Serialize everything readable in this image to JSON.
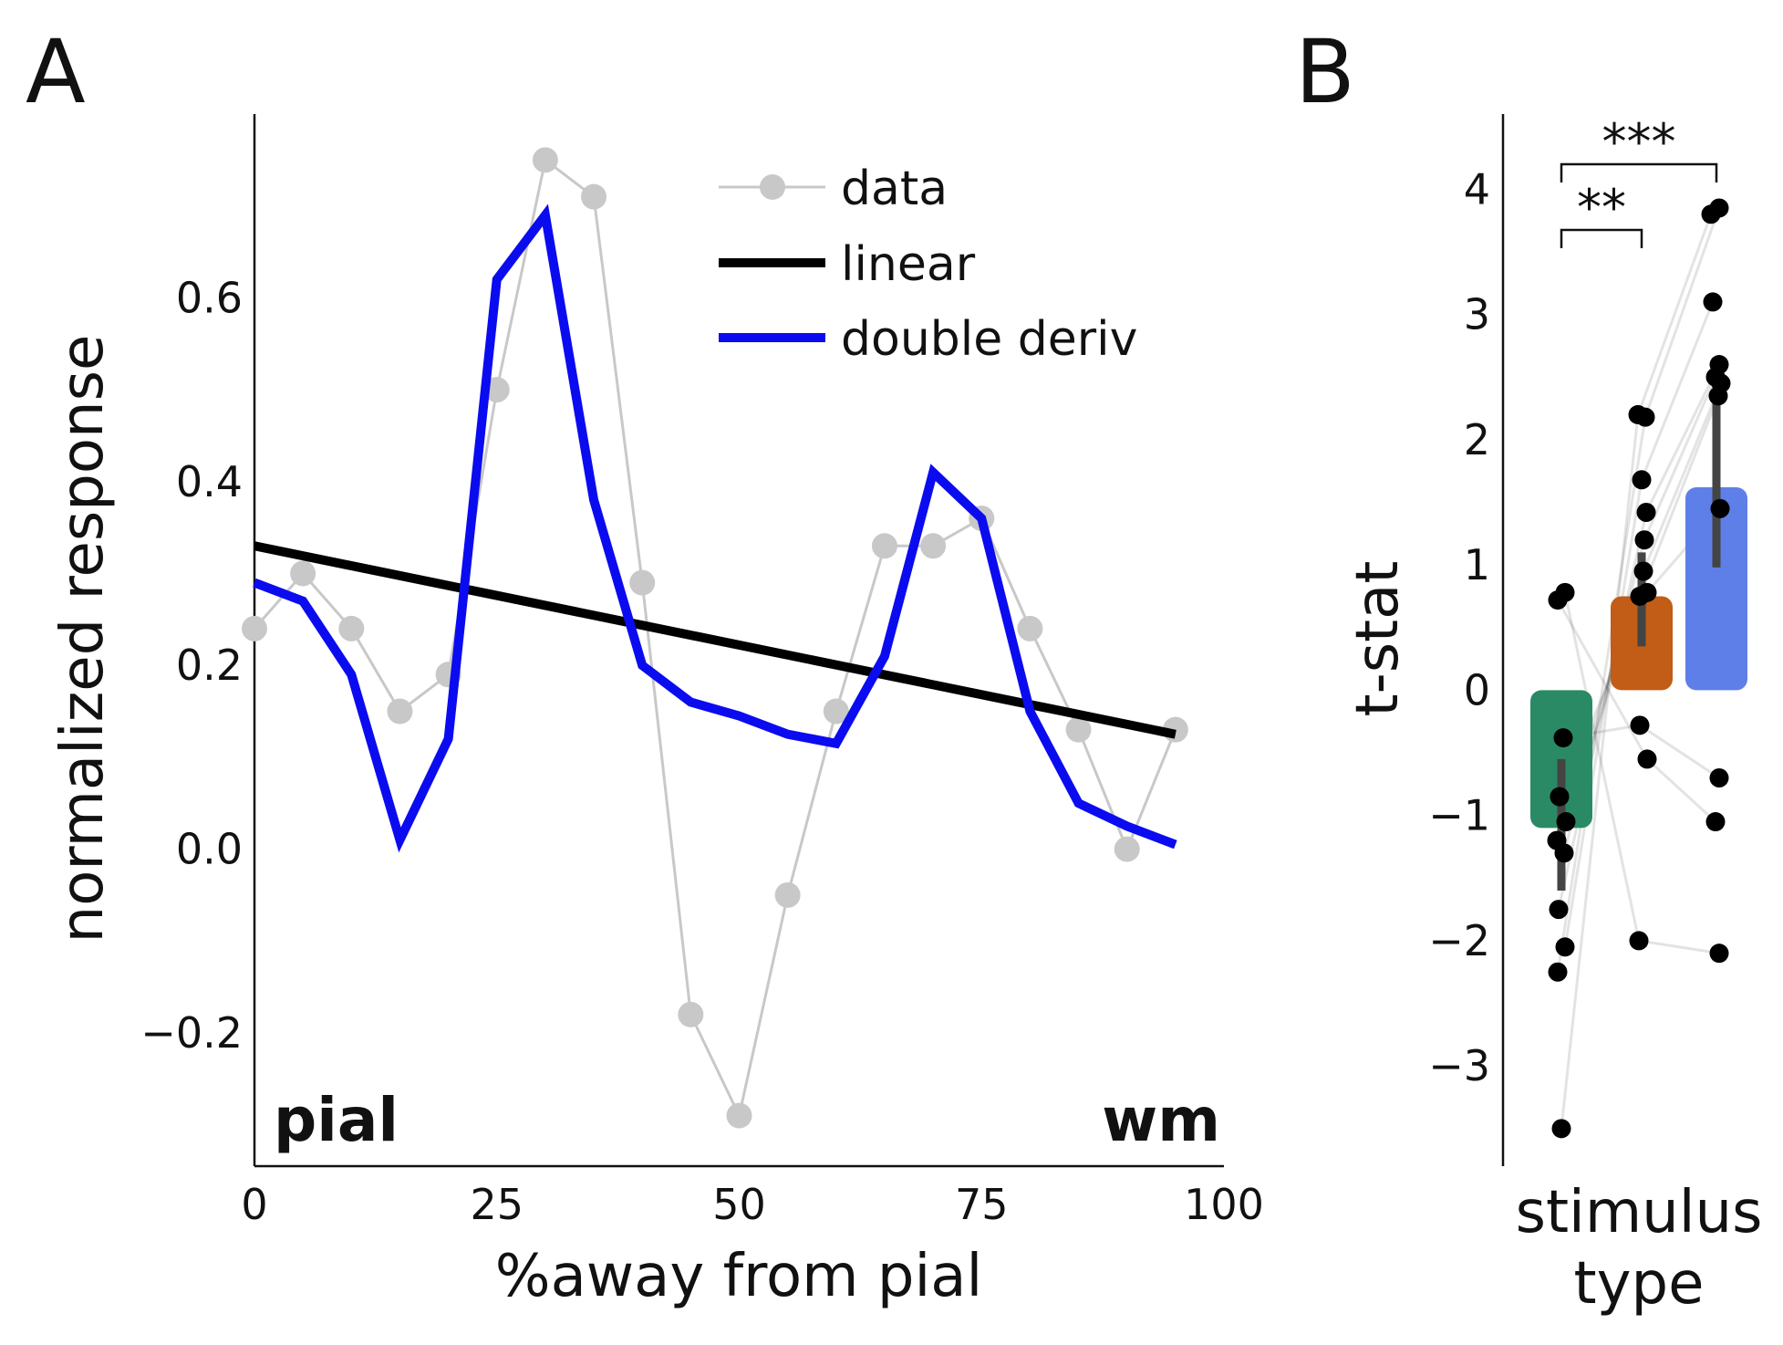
{
  "panels": {
    "a": "A",
    "b": "B"
  },
  "chart_data": [
    {
      "type": "line",
      "xlabel": "%away from pial",
      "ylabel": "normalized response",
      "xlim": [
        0,
        100
      ],
      "ylim": [
        -0.345,
        0.8
      ],
      "xticks": [
        0,
        25,
        50,
        75,
        100
      ],
      "yticks": [
        -0.2,
        0.0,
        0.2,
        0.4,
        0.6
      ],
      "xtick_labels": [
        "0",
        "25",
        "50",
        "75",
        "100"
      ],
      "ytick_labels": [
        "−0.2",
        "0.0",
        "0.2",
        "0.4",
        "0.6"
      ],
      "annotations": {
        "left": "pial",
        "right": "wm"
      },
      "legend_position": "top-right",
      "series": [
        {
          "name": "data",
          "color": "#c8c8c8",
          "marker": "circle",
          "x": [
            0,
            5,
            10,
            15,
            20,
            25,
            30,
            35,
            40,
            45,
            50,
            55,
            60,
            65,
            70,
            75,
            80,
            85,
            90,
            95
          ],
          "y": [
            0.24,
            0.3,
            0.24,
            0.15,
            0.19,
            0.5,
            0.75,
            0.71,
            0.29,
            -0.18,
            -0.29,
            -0.05,
            0.15,
            0.33,
            0.33,
            0.36,
            0.24,
            0.13,
            0.0,
            0.13
          ]
        },
        {
          "name": "linear",
          "color": "#000000",
          "x": [
            0,
            95
          ],
          "y": [
            0.33,
            0.125
          ]
        },
        {
          "name": "double deriv",
          "color": "#0b0bf0",
          "x": [
            0,
            5,
            10,
            15,
            20,
            25,
            30,
            35,
            40,
            45,
            50,
            55,
            60,
            65,
            70,
            75,
            80,
            85,
            90,
            95
          ],
          "y": [
            0.29,
            0.27,
            0.19,
            0.01,
            0.12,
            0.62,
            0.69,
            0.38,
            0.2,
            0.16,
            0.145,
            0.125,
            0.115,
            0.21,
            0.41,
            0.36,
            0.15,
            0.05,
            0.025,
            0.005
          ]
        }
      ]
    },
    {
      "type": "bar",
      "xlabel_lines": [
        "stimulus",
        "type"
      ],
      "ylabel": "t-stat",
      "ylim": [
        -3.8,
        4.6
      ],
      "yticks": [
        -3,
        -2,
        -1,
        0,
        1,
        2,
        3,
        4
      ],
      "ytick_labels": [
        "−3",
        "−2",
        "−1",
        "0",
        "1",
        "2",
        "3",
        "4"
      ],
      "categories": [
        "",
        "",
        ""
      ],
      "values": [
        -1.1,
        0.75,
        1.62
      ],
      "error_bars": [
        [
          -1.6,
          -0.55
        ],
        [
          0.35,
          1.1
        ],
        [
          0.98,
          2.4
        ]
      ],
      "colors": [
        "#2a8a66",
        "#c15d16",
        "#5f7fe8"
      ],
      "points": [
        [
          -3.5,
          -2.25,
          -2.05,
          -1.75,
          -1.3,
          -1.2,
          -1.05,
          -0.85,
          -0.38,
          0.72,
          0.78
        ],
        [
          2.2,
          2.18,
          1.68,
          1.42,
          1.2,
          0.95,
          0.75,
          0.78,
          -0.28,
          -0.55,
          -2.0
        ],
        [
          3.8,
          3.85,
          3.1,
          2.6,
          2.5,
          2.45,
          2.35,
          1.45,
          -0.7,
          -1.05,
          -2.1
        ]
      ],
      "significance": [
        {
          "from": 0,
          "to": 1,
          "label": "**"
        },
        {
          "from": 0,
          "to": 2,
          "label": "***"
        }
      ]
    }
  ]
}
